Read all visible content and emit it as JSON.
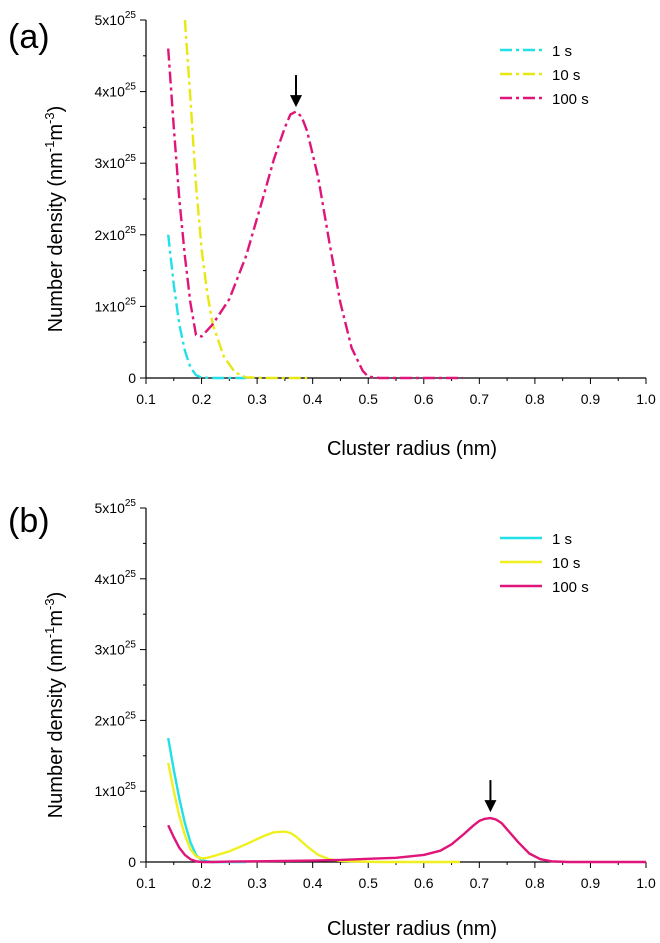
{
  "chart_data": [
    {
      "type": "line",
      "panel_label": "(a)",
      "xlabel": "Cluster radius (nm)",
      "ylabel": "Number density (nm⁻¹m⁻³)",
      "xlim": [
        0.1,
        1.0
      ],
      "ylim": [
        0,
        5e+25
      ],
      "x_ticks": [
        "0.1",
        "0.2",
        "0.3",
        "0.4",
        "0.5",
        "0.6",
        "0.7",
        "0.8",
        "0.9",
        "1.0"
      ],
      "y_ticks": [
        "0",
        "1x10²⁵",
        "2x10²⁵",
        "3x10²⁵",
        "4x10²⁵",
        "5x10²⁵"
      ],
      "line_style": "dash-dot",
      "legend_position": "top-right",
      "grid": false,
      "annotation": {
        "type": "arrow",
        "x": 0.37,
        "y": 3.7e+25
      },
      "series": [
        {
          "name": "1 s",
          "color": "#22e0e8",
          "x": [
            0.14,
            0.15,
            0.16,
            0.17,
            0.18,
            0.19,
            0.2,
            0.22,
            0.25,
            0.28
          ],
          "y": [
            2e+25,
            1.3e+25,
            7.5e+24,
            3.8e+24,
            1.5e+24,
            4e+23,
            5e+22,
            0,
            0,
            0
          ]
        },
        {
          "name": "10 s",
          "color": "#e8e810",
          "x": [
            0.17,
            0.18,
            0.19,
            0.2,
            0.21,
            0.22,
            0.24,
            0.26,
            0.28,
            0.32,
            0.36,
            0.39
          ],
          "y": [
            5e+25,
            3.9e+25,
            2.7e+25,
            1.8e+25,
            1.2e+25,
            7.5e+24,
            3e+24,
            8e+23,
            1e+23,
            0,
            0,
            0
          ]
        },
        {
          "name": "100 s",
          "color": "#e0157a",
          "x": [
            0.14,
            0.15,
            0.16,
            0.17,
            0.18,
            0.19,
            0.2,
            0.22,
            0.25,
            0.28,
            0.31,
            0.33,
            0.35,
            0.36,
            0.37,
            0.38,
            0.39,
            0.41,
            0.43,
            0.45,
            0.47,
            0.49,
            0.5,
            0.52,
            0.55,
            0.6,
            0.65,
            0.67
          ],
          "y": [
            4.6e+25,
            3.5e+25,
            2.5e+25,
            1.7e+25,
            1.05e+25,
            6e+24,
            5.8e+24,
            7.5e+24,
            1.1e+25,
            1.7e+25,
            2.5e+25,
            3.05e+25,
            3.5e+25,
            3.68e+25,
            3.72e+25,
            3.65e+25,
            3.45e+25,
            2.8e+25,
            1.9e+25,
            1.05e+25,
            4.2e+24,
            1e+24,
            2e+23,
            0,
            0,
            0,
            0,
            0
          ]
        }
      ]
    },
    {
      "type": "line",
      "panel_label": "(b)",
      "xlabel": "Cluster radius (nm)",
      "ylabel": "Number density (nm⁻¹m⁻³)",
      "xlim": [
        0.1,
        1.0
      ],
      "ylim": [
        0,
        5e+25
      ],
      "x_ticks": [
        "0.1",
        "0.2",
        "0.3",
        "0.4",
        "0.5",
        "0.6",
        "0.7",
        "0.8",
        "0.9",
        "1.0"
      ],
      "y_ticks": [
        "0",
        "1x10²⁵",
        "2x10²⁵",
        "3x10²⁵",
        "4x10²⁵",
        "5x10²⁵"
      ],
      "line_style": "solid",
      "legend_position": "top-right",
      "grid": false,
      "annotation": {
        "type": "arrow",
        "x": 0.72,
        "y": 6.2e+24
      },
      "series": [
        {
          "name": "1 s",
          "color": "#22e0e8",
          "x": [
            0.14,
            0.15,
            0.16,
            0.17,
            0.18,
            0.19,
            0.2,
            0.21,
            0.22,
            0.25,
            0.28
          ],
          "y": [
            1.75e+25,
            1.3e+25,
            9e+24,
            5.5e+24,
            2.8e+24,
            1e+24,
            3e+23,
            1e+23,
            0,
            0,
            0
          ]
        },
        {
          "name": "10 s",
          "color": "#f0f020",
          "x": [
            0.14,
            0.15,
            0.16,
            0.17,
            0.18,
            0.19,
            0.2,
            0.21,
            0.22,
            0.25,
            0.28,
            0.31,
            0.33,
            0.35,
            0.36,
            0.37,
            0.39,
            0.41,
            0.43,
            0.45,
            0.48,
            0.52,
            0.57,
            0.62,
            0.665
          ],
          "y": [
            1.4e+25,
            1e+25,
            6.5e+24,
            3.8e+24,
            1.8e+24,
            8e+23,
            5e+23,
            6e+23,
            8e+23,
            1.5e+24,
            2.5e+24,
            3.6e+24,
            4.2e+24,
            4.3e+24,
            4.1e+24,
            3.6e+24,
            2.2e+24,
            1e+24,
            4e+23,
            1.5e+23,
            5e+22,
            0,
            0,
            0,
            0
          ]
        },
        {
          "name": "100 s",
          "color": "#e0157a",
          "x": [
            0.14,
            0.15,
            0.16,
            0.17,
            0.18,
            0.19,
            0.2,
            0.22,
            0.25,
            0.3,
            0.35,
            0.4,
            0.45,
            0.5,
            0.55,
            0.6,
            0.63,
            0.65,
            0.67,
            0.69,
            0.7,
            0.71,
            0.72,
            0.73,
            0.74,
            0.75,
            0.77,
            0.79,
            0.81,
            0.83,
            0.86,
            0.9,
            0.95,
            1.0
          ],
          "y": [
            5.2e+24,
            3.5e+24,
            2e+24,
            1e+24,
            4e+23,
            1e+23,
            0,
            0,
            5e+22,
            1e+23,
            1.5e+23,
            2e+23,
            3e+23,
            4.5e+23,
            6e+23,
            1e+24,
            1.6e+24,
            2.5e+24,
            3.8e+24,
            5.2e+24,
            5.8e+24,
            6.1e+24,
            6.2e+24,
            6e+24,
            5.5e+24,
            4.6e+24,
            2.8e+24,
            1.2e+24,
            4e+23,
            1e+23,
            0,
            0,
            0,
            0
          ]
        }
      ]
    }
  ]
}
